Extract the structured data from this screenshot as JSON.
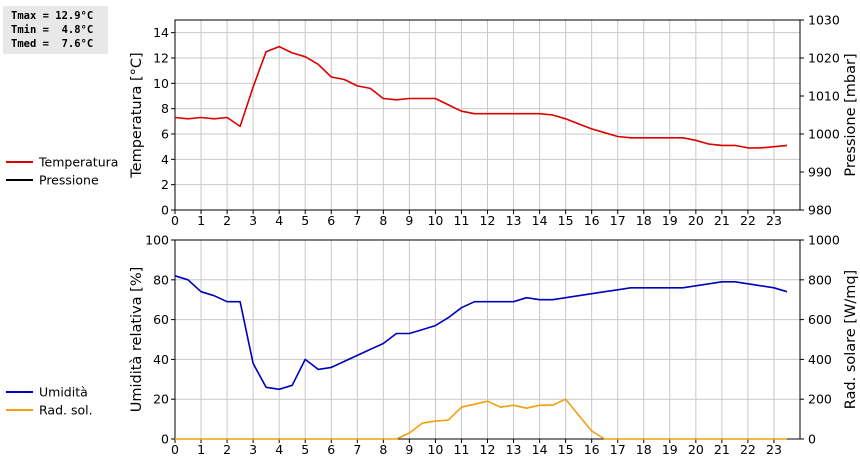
{
  "stats": {
    "tmax": "Tmax = 12.9°C",
    "tmin": "Tmin =  4.8°C",
    "tmed": "Tmed =  7.6°C"
  },
  "colors": {
    "temperatura": "#dd0000",
    "pressione": "#000000",
    "umidita": "#0000bb",
    "rad_sol": "#f0a010",
    "grid": "#c8c8c8"
  },
  "chart_data": [
    {
      "type": "line",
      "xlim": [
        0,
        24
      ],
      "x_ticks": [
        0,
        1,
        2,
        3,
        4,
        5,
        6,
        7,
        8,
        9,
        10,
        11,
        12,
        13,
        14,
        15,
        16,
        17,
        18,
        19,
        20,
        21,
        22,
        23
      ],
      "ylabel": "Temperatura [°C]",
      "ylim": [
        0,
        15
      ],
      "y_ticks": [
        0,
        2,
        4,
        6,
        8,
        10,
        12,
        14
      ],
      "ylabel_right": "Pressione [mbar]",
      "ylim_right": [
        980,
        1030
      ],
      "y_ticks_right": [
        980,
        990,
        1000,
        1010,
        1020,
        1030
      ],
      "grid": true,
      "legend": [
        "Temperatura",
        "Pressione"
      ],
      "series": [
        {
          "name": "Temperatura",
          "axis": "left",
          "x": [
            0,
            0.5,
            1,
            1.5,
            2,
            2.5,
            3,
            3.5,
            4,
            4.5,
            5,
            5.5,
            6,
            6.5,
            7,
            7.5,
            8,
            8.5,
            9,
            9.5,
            10,
            10.5,
            11,
            11.5,
            12,
            12.5,
            13,
            13.5,
            14,
            14.5,
            15,
            15.5,
            16,
            16.5,
            17,
            17.5,
            18,
            18.5,
            19,
            19.5,
            20,
            20.5,
            21,
            21.5,
            22,
            22.5,
            23,
            23.5
          ],
          "values": [
            7.3,
            7.2,
            7.3,
            7.2,
            7.3,
            6.6,
            9.7,
            12.5,
            12.9,
            12.4,
            12.1,
            11.5,
            10.5,
            10.3,
            9.8,
            9.6,
            8.8,
            8.7,
            8.8,
            8.8,
            8.8,
            8.3,
            7.8,
            7.6,
            7.6,
            7.6,
            7.6,
            7.6,
            7.6,
            7.5,
            7.2,
            6.8,
            6.4,
            6.1,
            5.8,
            5.7,
            5.7,
            5.7,
            5.7,
            5.7,
            5.5,
            5.2,
            5.1,
            5.1,
            4.9,
            4.9,
            5.0,
            5.1
          ]
        },
        {
          "name": "Pressione",
          "axis": "right",
          "x": [],
          "values": []
        }
      ]
    },
    {
      "type": "line",
      "xlim": [
        0,
        24
      ],
      "x_ticks": [
        0,
        1,
        2,
        3,
        4,
        5,
        6,
        7,
        8,
        9,
        10,
        11,
        12,
        13,
        14,
        15,
        16,
        17,
        18,
        19,
        20,
        21,
        22,
        23
      ],
      "ylabel": "Umidità relativa [%]",
      "ylim": [
        0,
        100
      ],
      "y_ticks": [
        0,
        20,
        40,
        60,
        80,
        100
      ],
      "ylabel_right": "Rad. solare [W/mq]",
      "ylim_right": [
        0,
        1000
      ],
      "y_ticks_right": [
        0,
        200,
        400,
        600,
        800,
        1000
      ],
      "grid": true,
      "legend": [
        "Umidità",
        "Rad. sol."
      ],
      "series": [
        {
          "name": "Umidità",
          "axis": "left",
          "x": [
            0,
            0.5,
            1,
            1.5,
            2,
            2.5,
            3,
            3.5,
            4,
            4.5,
            5,
            5.5,
            6,
            6.5,
            7,
            7.5,
            8,
            8.5,
            9,
            9.5,
            10,
            10.5,
            11,
            11.5,
            12,
            12.5,
            13,
            13.5,
            14,
            14.5,
            15,
            15.5,
            16,
            16.5,
            17,
            17.5,
            18,
            18.5,
            19,
            19.5,
            20,
            20.5,
            21,
            21.5,
            22,
            22.5,
            23,
            23.5
          ],
          "values": [
            82,
            80,
            74,
            72,
            69,
            69,
            38,
            26,
            25,
            27,
            40,
            35,
            36,
            39,
            42,
            45,
            48,
            53,
            53,
            55,
            57,
            61,
            66,
            69,
            69,
            69,
            69,
            71,
            70,
            70,
            71,
            72,
            73,
            74,
            75,
            76,
            76,
            76,
            76,
            76,
            77,
            78,
            79,
            79,
            78,
            77,
            76,
            74
          ]
        },
        {
          "name": "Rad. sol.",
          "axis": "right",
          "x": [
            0,
            1,
            2,
            3,
            4,
            5,
            6,
            7,
            8,
            8.5,
            9,
            9.5,
            10,
            10.5,
            11,
            11.5,
            12,
            12.5,
            13,
            13.5,
            14,
            14.5,
            15,
            15.5,
            16,
            16.5,
            17,
            18,
            19,
            20,
            21,
            22,
            23,
            23.5
          ],
          "values": [
            0,
            0,
            0,
            0,
            0,
            0,
            0,
            0,
            0,
            0,
            30,
            80,
            90,
            95,
            160,
            175,
            190,
            160,
            170,
            155,
            170,
            170,
            200,
            120,
            40,
            0,
            0,
            0,
            0,
            0,
            0,
            0,
            0,
            0
          ]
        }
      ]
    }
  ]
}
